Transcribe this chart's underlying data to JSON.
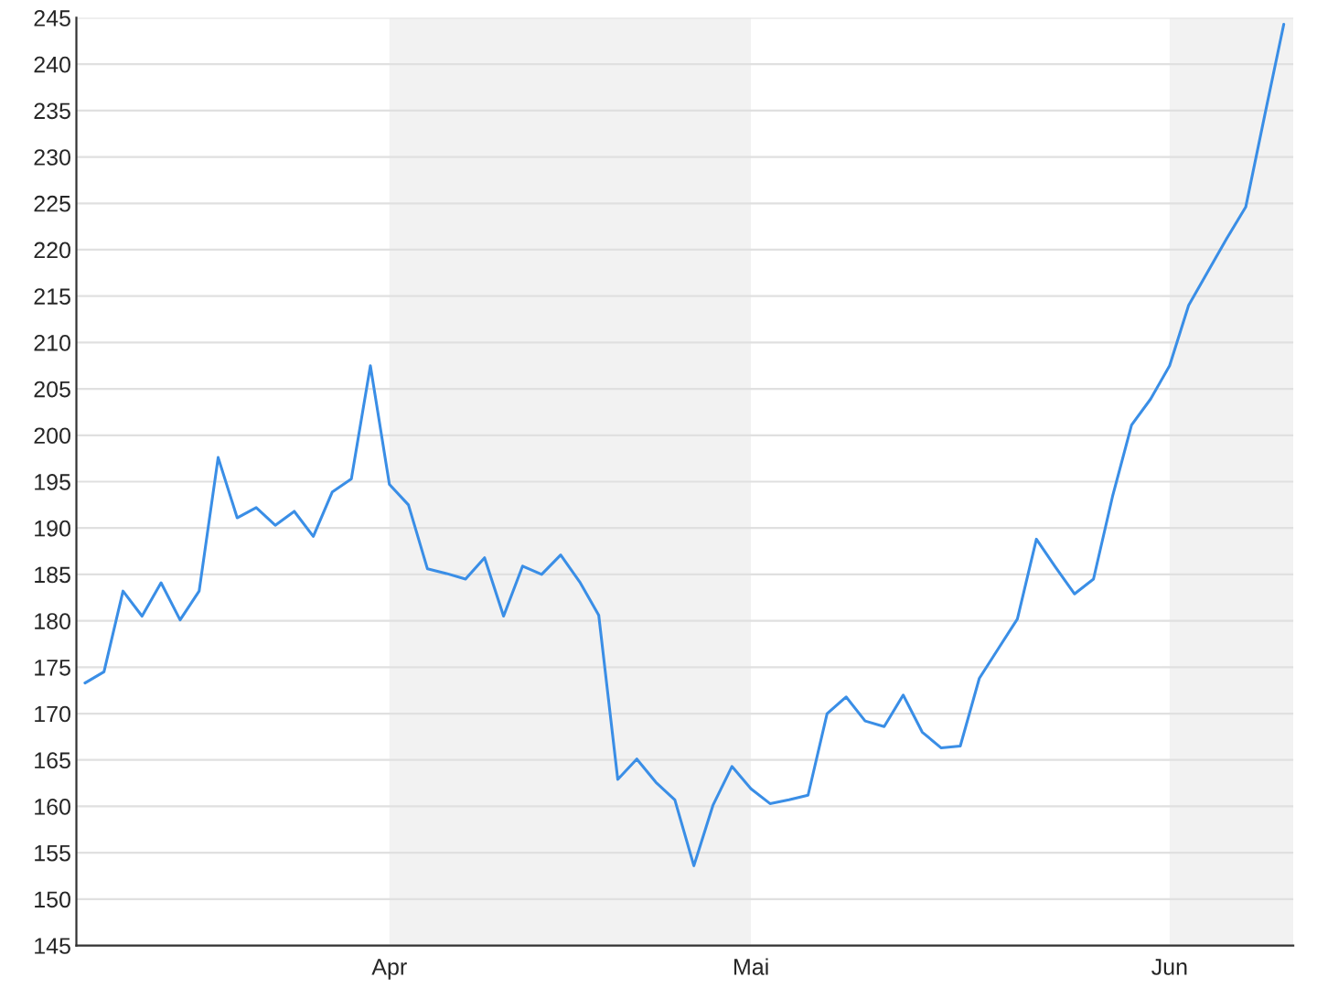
{
  "chart_data": {
    "type": "line",
    "categories": [
      null,
      null,
      null,
      null,
      null,
      null,
      null,
      null,
      null,
      null,
      null,
      null,
      null,
      null,
      null,
      null,
      "Apr",
      null,
      null,
      null,
      null,
      null,
      null,
      null,
      null,
      null,
      null,
      null,
      null,
      null,
      null,
      null,
      null,
      null,
      null,
      "Mai",
      null,
      null,
      null,
      null,
      null,
      null,
      null,
      null,
      null,
      null,
      null,
      null,
      null,
      null,
      null,
      null,
      null,
      null,
      null,
      null,
      null,
      "Jun",
      null,
      null,
      null,
      null,
      null,
      null
    ],
    "series": [
      {
        "color": "#3a8ee6",
        "values": [
          173.3,
          174.5,
          183.2,
          180.5,
          184.1,
          180.1,
          183.2,
          197.6,
          191.1,
          192.2,
          190.3,
          191.8,
          189.1,
          193.9,
          195.3,
          207.5,
          194.7,
          192.5,
          185.6,
          185.1,
          184.5,
          186.8,
          180.5,
          185.9,
          185.0,
          187.1,
          184.2,
          180.6,
          162.9,
          165.1,
          162.6,
          160.7,
          153.6,
          160.1,
          164.3,
          161.9,
          160.3,
          160.7,
          161.2,
          170.0,
          171.8,
          169.2,
          168.6,
          172.0,
          168.0,
          166.3,
          166.5,
          173.8,
          177.0,
          180.2,
          188.8,
          185.8,
          182.9,
          184.5,
          193.4,
          201.1,
          203.9,
          207.5,
          214.0,
          217.6,
          221.2,
          224.6,
          234.5,
          244.3
        ]
      }
    ],
    "ylim": [
      145,
      245
    ],
    "yticks": [
      145,
      150,
      155,
      160,
      165,
      170,
      175,
      180,
      185,
      190,
      195,
      200,
      205,
      210,
      215,
      220,
      225,
      230,
      235,
      240,
      245
    ],
    "bands": [
      {
        "axis": "x",
        "from": "Apr",
        "to": "Mai",
        "color": "#f2f2f2"
      }
    ],
    "grid": "y",
    "line_style": "solid",
    "marker": "none"
  }
}
